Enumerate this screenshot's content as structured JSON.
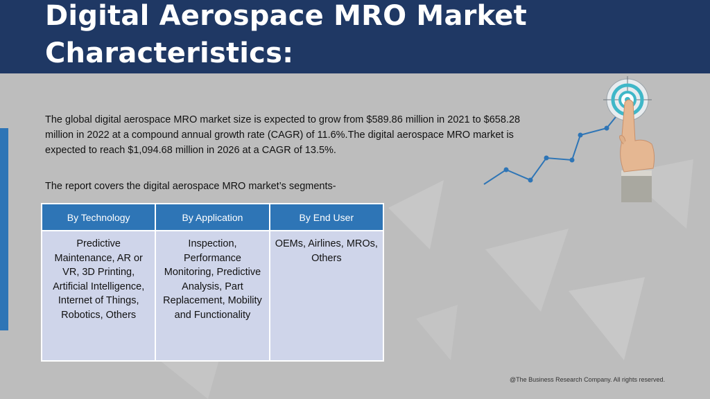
{
  "header": {
    "title_line1": "Digital Aerospace MRO Market",
    "title_line2": "Characteristics:"
  },
  "body": {
    "intro": "The global digital aerospace MRO market size is expected to grow from $589.86 million in 2021 to $658.28 million in 2022 at a compound annual growth rate (CAGR) of 11.6%.The digital aerospace MRO market is expected to reach $1,094.68 million in 2026 at a CAGR of 13.5%.",
    "segments_intro": "The report covers the digital aerospace MRO market’s segments-"
  },
  "table": {
    "headers": [
      "By Technology",
      "By Application",
      "By End User"
    ],
    "cells": [
      "Predictive Maintenance, AR or VR, 3D Printing, Artificial Intelligence, Internet of Things, Robotics, Others",
      "Inspection, Performance Monitoring, Predictive Analysis, Part Replacement, Mobility and Functionality",
      "OEMs, Airlines, MROs, Others"
    ]
  },
  "footer": {
    "copyright": "@The Business Research Company. All rights reserved."
  },
  "colors": {
    "header_bg": "#1f3864",
    "accent": "#2e75b6",
    "table_cell_bg": "#cfd5ea",
    "page_bg": "#bdbdbd"
  },
  "icons": [
    "target-icon",
    "pointing-hand-icon",
    "growth-line-icon"
  ]
}
